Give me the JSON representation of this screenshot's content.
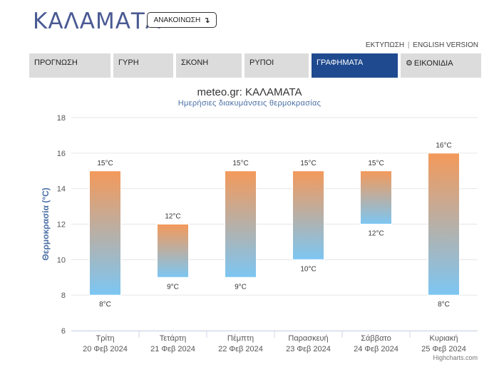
{
  "header": {
    "city": "ΚΑΛΑΜΑΤΑ",
    "announce_label": "ΑΝΑΚΟΙΝΩΣΗ",
    "announce_icon": "↴",
    "print_link": "ΕΚΤΥΠΩΣΗ",
    "separator": "|",
    "english_link": "ENGLISH VERSION"
  },
  "nav": {
    "tabs": [
      {
        "label": "ΠΡΟΓΝΩΣΗ",
        "active": false
      },
      {
        "label": "ΓΥΡΗ",
        "active": false
      },
      {
        "label": "ΣΚΟΝΗ",
        "active": false
      },
      {
        "label": "ΡΥΠΟΙ",
        "active": false
      },
      {
        "label": "ΓΡΑΦΗΜΑΤΑ",
        "active": true
      },
      {
        "label": "ΕΙΚΟΝΙΔΙΑ",
        "active": false,
        "icon": "gear-icon"
      }
    ]
  },
  "chart_data": {
    "type": "bar",
    "subtype": "columnrange",
    "title": "meteo.gr: ΚΑΛΑΜΑΤΑ",
    "subtitle": "Ημερήσιες διακυμάνσεις θερμοκρασίας",
    "ylabel": "Θερμοκρασία (°C)",
    "xlabel": "",
    "ylim": [
      6,
      18
    ],
    "yticks": [
      6,
      8,
      10,
      12,
      14,
      16,
      18
    ],
    "grid": true,
    "legend": "none",
    "categories": [
      {
        "day": "Τρίτη",
        "date": "20 Φεβ 2024"
      },
      {
        "day": "Τετάρτη",
        "date": "21 Φεβ 2024"
      },
      {
        "day": "Πέμπτη",
        "date": "22 Φεβ 2024"
      },
      {
        "day": "Παρασκευή",
        "date": "23 Φεβ 2024"
      },
      {
        "day": "Σάββατο",
        "date": "24 Φεβ 2024"
      },
      {
        "day": "Κυριακή",
        "date": "25 Φεβ 2024"
      }
    ],
    "low": [
      8,
      9,
      9,
      10,
      12,
      8
    ],
    "high": [
      15,
      12,
      15,
      15,
      15,
      16
    ],
    "low_labels": [
      "8°C",
      "9°C",
      "9°C",
      "10°C",
      "12°C",
      "8°C"
    ],
    "high_labels": [
      "15°C",
      "12°C",
      "15°C",
      "15°C",
      "15°C",
      "16°C"
    ],
    "colors": {
      "warm": "#f4995a",
      "cold": "#7cc6f3"
    }
  },
  "credits": "Highcharts.com"
}
